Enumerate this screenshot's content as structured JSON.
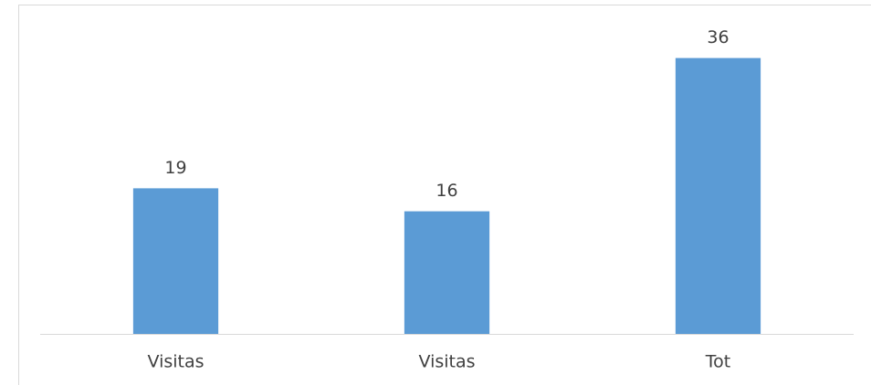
{
  "chart_data": {
    "type": "bar",
    "categories": [
      "Visitas",
      "Visitas",
      "Tot"
    ],
    "values": [
      19,
      16,
      36
    ],
    "color": "#5b9bd5",
    "ylim": [
      0,
      40
    ]
  }
}
